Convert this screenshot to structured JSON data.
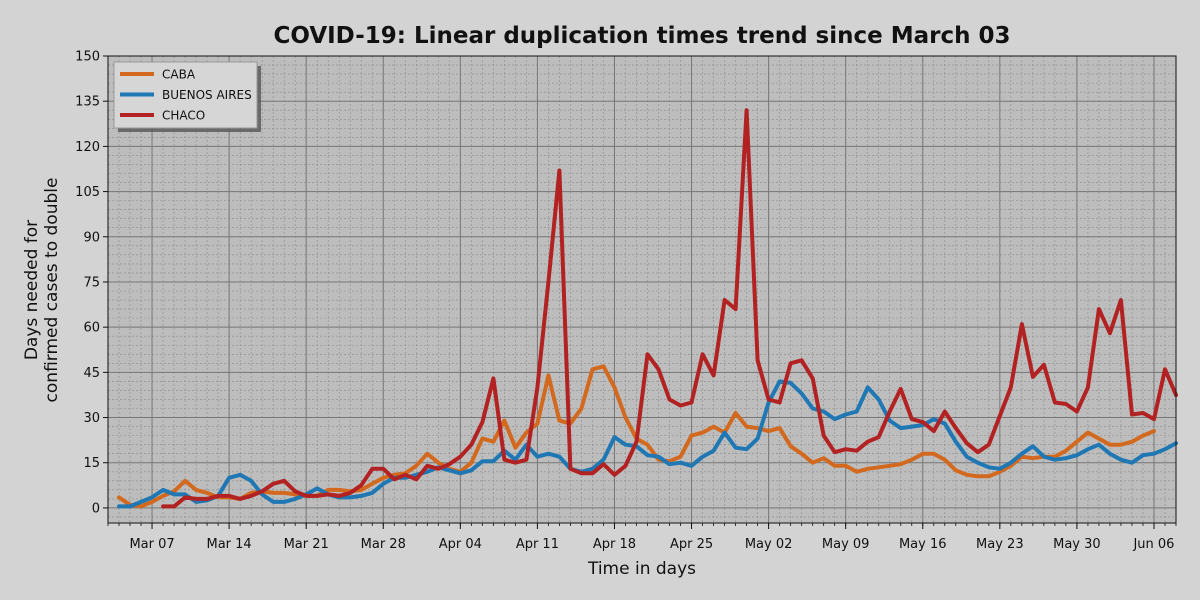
{
  "chart_data": {
    "type": "line",
    "title": "COVID-19: Linear duplication times trend since March 03",
    "xlabel": "Time in days",
    "ylabel_line1": "Days needed for",
    "ylabel_line2": "confirmed cases to double",
    "ylim": [
      -5,
      150
    ],
    "yticks": [
      0,
      15,
      30,
      45,
      60,
      75,
      90,
      105,
      120,
      135,
      150
    ],
    "x_start": "2020-03-03",
    "x_end": "2020-06-08",
    "xticks": [
      {
        "date": "2020-03-07",
        "label": "Mar 07"
      },
      {
        "date": "2020-03-14",
        "label": "Mar 14"
      },
      {
        "date": "2020-03-21",
        "label": "Mar 21"
      },
      {
        "date": "2020-03-28",
        "label": "Mar 28"
      },
      {
        "date": "2020-04-04",
        "label": "Apr 04"
      },
      {
        "date": "2020-04-11",
        "label": "Apr 11"
      },
      {
        "date": "2020-04-18",
        "label": "Apr 18"
      },
      {
        "date": "2020-04-25",
        "label": "Apr 25"
      },
      {
        "date": "2020-05-02",
        "label": "May 02"
      },
      {
        "date": "2020-05-09",
        "label": "May 09"
      },
      {
        "date": "2020-05-16",
        "label": "May 16"
      },
      {
        "date": "2020-05-23",
        "label": "May 23"
      },
      {
        "date": "2020-05-30",
        "label": "May 30"
      },
      {
        "date": "2020-06-06",
        "label": "Jun 06"
      }
    ],
    "grid": true,
    "legend_position": "top-left",
    "series": [
      {
        "name": "CABA",
        "color": "#d2691e",
        "start_date": "2020-03-04",
        "values": [
          3.5,
          1,
          0.5,
          2,
          4,
          5.5,
          9,
          6,
          5,
          3.5,
          3.5,
          3,
          5,
          5.5,
          5,
          5,
          4.5,
          4,
          4,
          6,
          6,
          5.5,
          6,
          8,
          10,
          11,
          11.5,
          14,
          18,
          15,
          13,
          12,
          15,
          23,
          22,
          29,
          20,
          25,
          28,
          44,
          29,
          28,
          33,
          46,
          47,
          40,
          30,
          23,
          21,
          16,
          15.5,
          17,
          24,
          25,
          27,
          25,
          31.5,
          27,
          26.5,
          25.5,
          26.5,
          20.5,
          18,
          15,
          16.5,
          14,
          14,
          12,
          13,
          13.5,
          14,
          14.5,
          16,
          18,
          18,
          16,
          12.5,
          11,
          10.5,
          10.5,
          12,
          14,
          17,
          16.5,
          17,
          17,
          19,
          22,
          25,
          23,
          21,
          21,
          22,
          24,
          25.5
        ]
      },
      {
        "name": "BUENOS AIRES",
        "color": "#1f77b4",
        "start_date": "2020-03-04",
        "values": [
          0.5,
          0.5,
          2,
          3.5,
          6,
          4.5,
          4.5,
          2,
          2.5,
          4,
          10,
          11,
          9,
          4.5,
          2,
          2,
          3,
          4.5,
          6.5,
          4.5,
          3.5,
          3.5,
          4,
          5,
          8,
          10,
          10,
          11,
          12,
          13.5,
          12.5,
          11.5,
          12.5,
          15.5,
          15.5,
          19,
          16,
          21,
          17,
          18,
          17,
          13,
          12,
          13,
          16,
          23.5,
          21,
          20.5,
          17.5,
          17,
          14.5,
          15,
          14,
          17,
          19,
          25,
          20,
          19.5,
          23,
          35,
          42,
          41.5,
          38,
          33,
          32,
          29.5,
          31,
          32,
          40,
          36,
          29,
          26.5,
          27,
          27.5,
          29.5,
          28,
          22,
          17,
          15,
          13.5,
          13,
          15,
          18,
          20.5,
          17,
          16,
          16.5,
          17.5,
          19.5,
          21,
          18,
          16,
          15,
          17.5,
          18,
          19.5,
          21.5
        ]
      },
      {
        "name": "CHACO",
        "color": "#b22222",
        "start_date": "2020-03-08",
        "values": [
          0.5,
          0.5,
          3.5,
          3,
          3,
          4,
          4,
          3,
          4,
          5.5,
          8,
          9,
          5.5,
          4,
          4,
          4.5,
          4,
          5,
          7.5,
          13,
          13,
          9.5,
          11,
          9.5,
          14,
          13,
          14.5,
          17,
          21,
          28.5,
          43,
          16,
          15,
          16,
          40,
          75,
          112,
          13,
          11.5,
          11.5,
          14.5,
          11,
          14,
          22,
          51,
          46,
          36,
          34,
          35,
          51,
          44,
          69,
          66,
          132,
          49,
          36,
          35,
          48,
          49,
          43,
          24,
          18.5,
          19.5,
          19,
          22,
          23.5,
          32,
          39.5,
          29.5,
          28.5,
          25.5,
          32,
          26.5,
          21.5,
          18.5,
          21,
          30.5,
          40,
          61,
          43.5,
          47.5,
          35,
          34.5,
          32,
          40,
          66,
          58,
          69,
          31,
          31.5,
          29.5,
          46,
          37.5
        ]
      }
    ]
  }
}
